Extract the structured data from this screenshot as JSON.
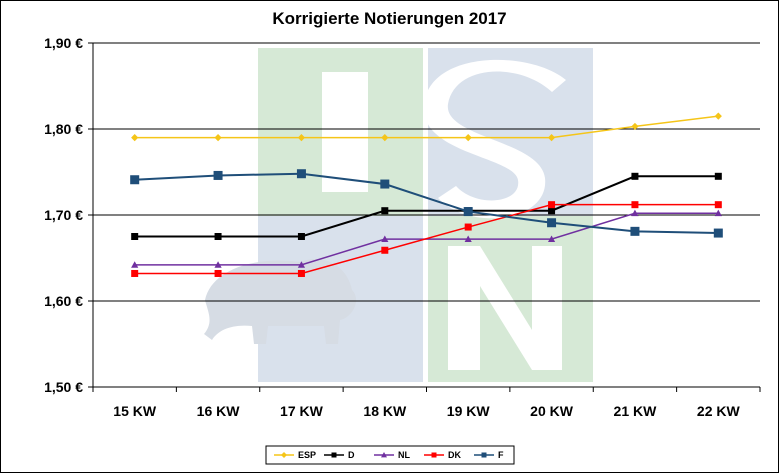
{
  "chart_data": {
    "type": "line",
    "title": "Korrigierte Notierungen 2017",
    "xlabel": "",
    "ylabel": "",
    "categories": [
      "15 KW",
      "16 KW",
      "17 KW",
      "18 KW",
      "19 KW",
      "20 KW",
      "21 KW",
      "22 KW"
    ],
    "ylim": [
      1.5,
      1.9
    ],
    "yticks": [
      1.5,
      1.6,
      1.7,
      1.8,
      1.9
    ],
    "ytick_labels": [
      "1,50 €",
      "1,60 €",
      "1,70 €",
      "1,80 €",
      "1,90 €"
    ],
    "grid": "horizontal",
    "legend_position": "bottom",
    "series": [
      {
        "name": "ESP",
        "color": "#F5C518",
        "marker": "diamond",
        "values": [
          1.79,
          1.79,
          1.79,
          1.79,
          1.79,
          1.79,
          1.803,
          1.815
        ]
      },
      {
        "name": "D",
        "color": "#000000",
        "marker": "square",
        "values": [
          1.675,
          1.675,
          1.675,
          1.705,
          1.705,
          1.705,
          1.745,
          1.745
        ]
      },
      {
        "name": "NL",
        "color": "#7030A0",
        "marker": "triangle",
        "values": [
          1.642,
          1.642,
          1.642,
          1.672,
          1.672,
          1.672,
          1.702,
          1.702
        ]
      },
      {
        "name": "DK",
        "color": "#FF0000",
        "marker": "square",
        "values": [
          1.632,
          1.632,
          1.632,
          1.659,
          1.686,
          1.712,
          1.712,
          1.712
        ]
      },
      {
        "name": "F",
        "color": "#1F4E79",
        "marker": "square",
        "values": [
          1.741,
          1.746,
          1.748,
          1.736,
          1.704,
          1.691,
          1.681,
          1.679
        ]
      }
    ]
  },
  "watermark": {
    "colors": [
      "#D6E9D6",
      "#D9E1EC"
    ],
    "icon": "pig-silhouette-icon"
  }
}
